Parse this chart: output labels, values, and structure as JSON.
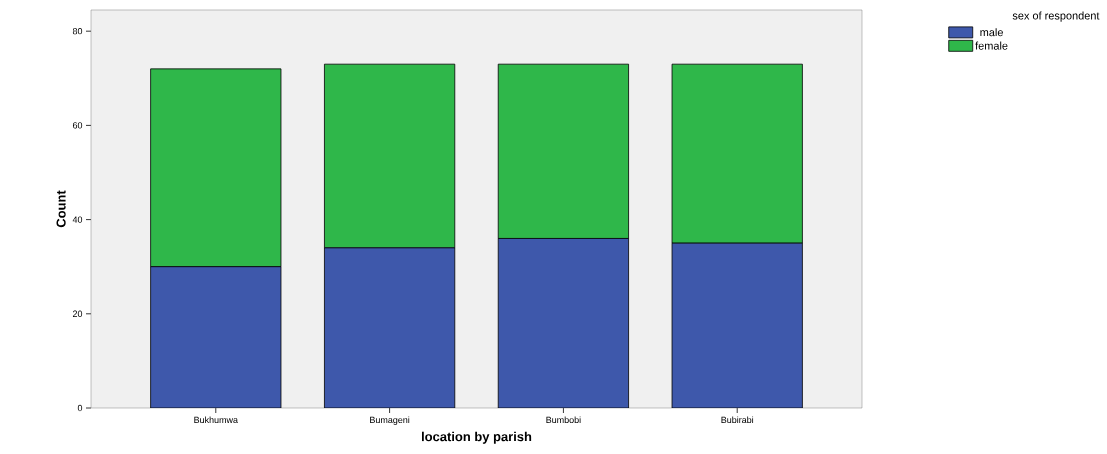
{
  "chart_data": {
    "type": "bar",
    "stacked": true,
    "xlabel": "location by parish",
    "ylabel": "Count",
    "legend_title": "sex of respondent",
    "legend": "top right",
    "categories": [
      "Bukhumwa",
      "Bumageni",
      "Bumbobi",
      "Bubirabi"
    ],
    "series": [
      {
        "name": "male",
        "color": "#3e58ab",
        "values": [
          30,
          34,
          36,
          35
        ]
      },
      {
        "name": "female",
        "color": "#2fb74a",
        "values": [
          42,
          39,
          37,
          38
        ]
      }
    ],
    "ylim": [
      0,
      84.5
    ],
    "yticks": [
      0,
      20,
      40,
      60,
      80
    ],
    "grid": false
  }
}
